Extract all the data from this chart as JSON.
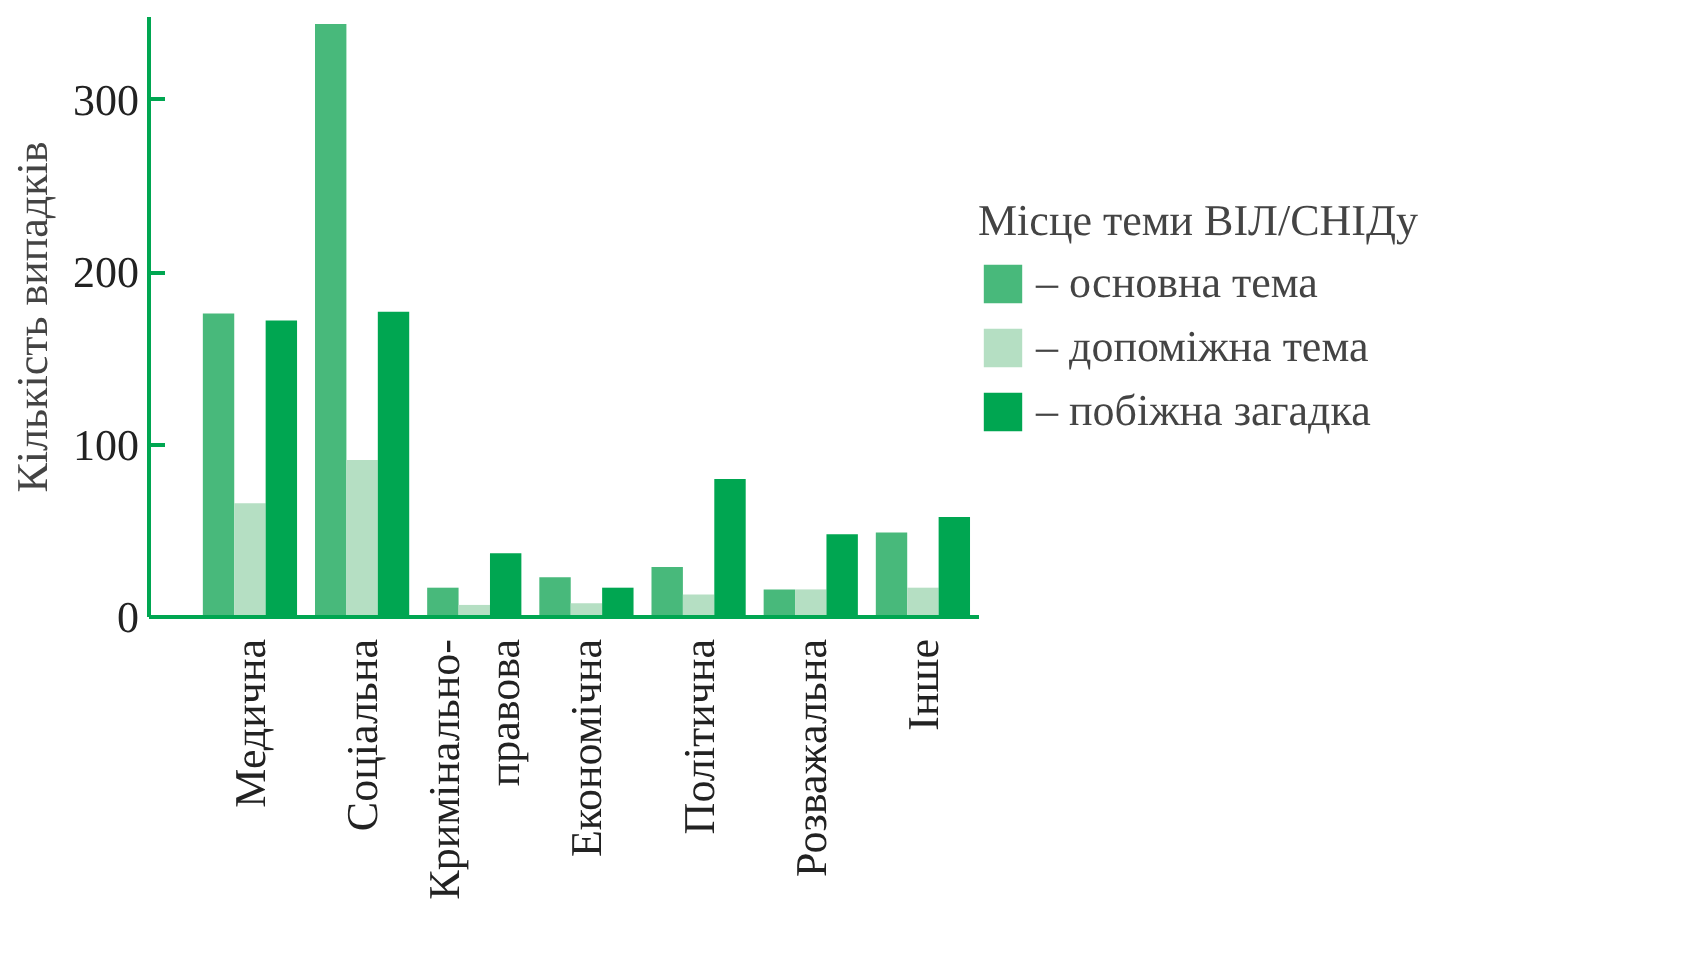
{
  "chart_data": {
    "type": "bar",
    "categories": [
      "Медична",
      "Соціальна",
      "Кримінально-\nправова",
      "Економічна",
      "Політична",
      "Розважальна",
      "Інше"
    ],
    "ylabel": "Кількість випадків",
    "legend_title": "Місце теми ВІЛ/СНІДу",
    "series": [
      {
        "name": "– основна тема",
        "color": "#48b97b",
        "values": [
          176,
          344,
          17,
          23,
          29,
          16,
          49
        ]
      },
      {
        "name": "– допоміжна тема",
        "color": "#b5dfc3",
        "values": [
          66,
          91,
          7,
          8,
          13,
          16,
          17
        ]
      },
      {
        "name": "– побіжна загадка",
        "color": "#00a651",
        "values": [
          172,
          177,
          37,
          17,
          80,
          48,
          58
        ]
      }
    ],
    "ylim": [
      0,
      348
    ],
    "yticks": [
      0,
      100,
      200,
      300
    ],
    "grid": false,
    "legend": "right"
  }
}
